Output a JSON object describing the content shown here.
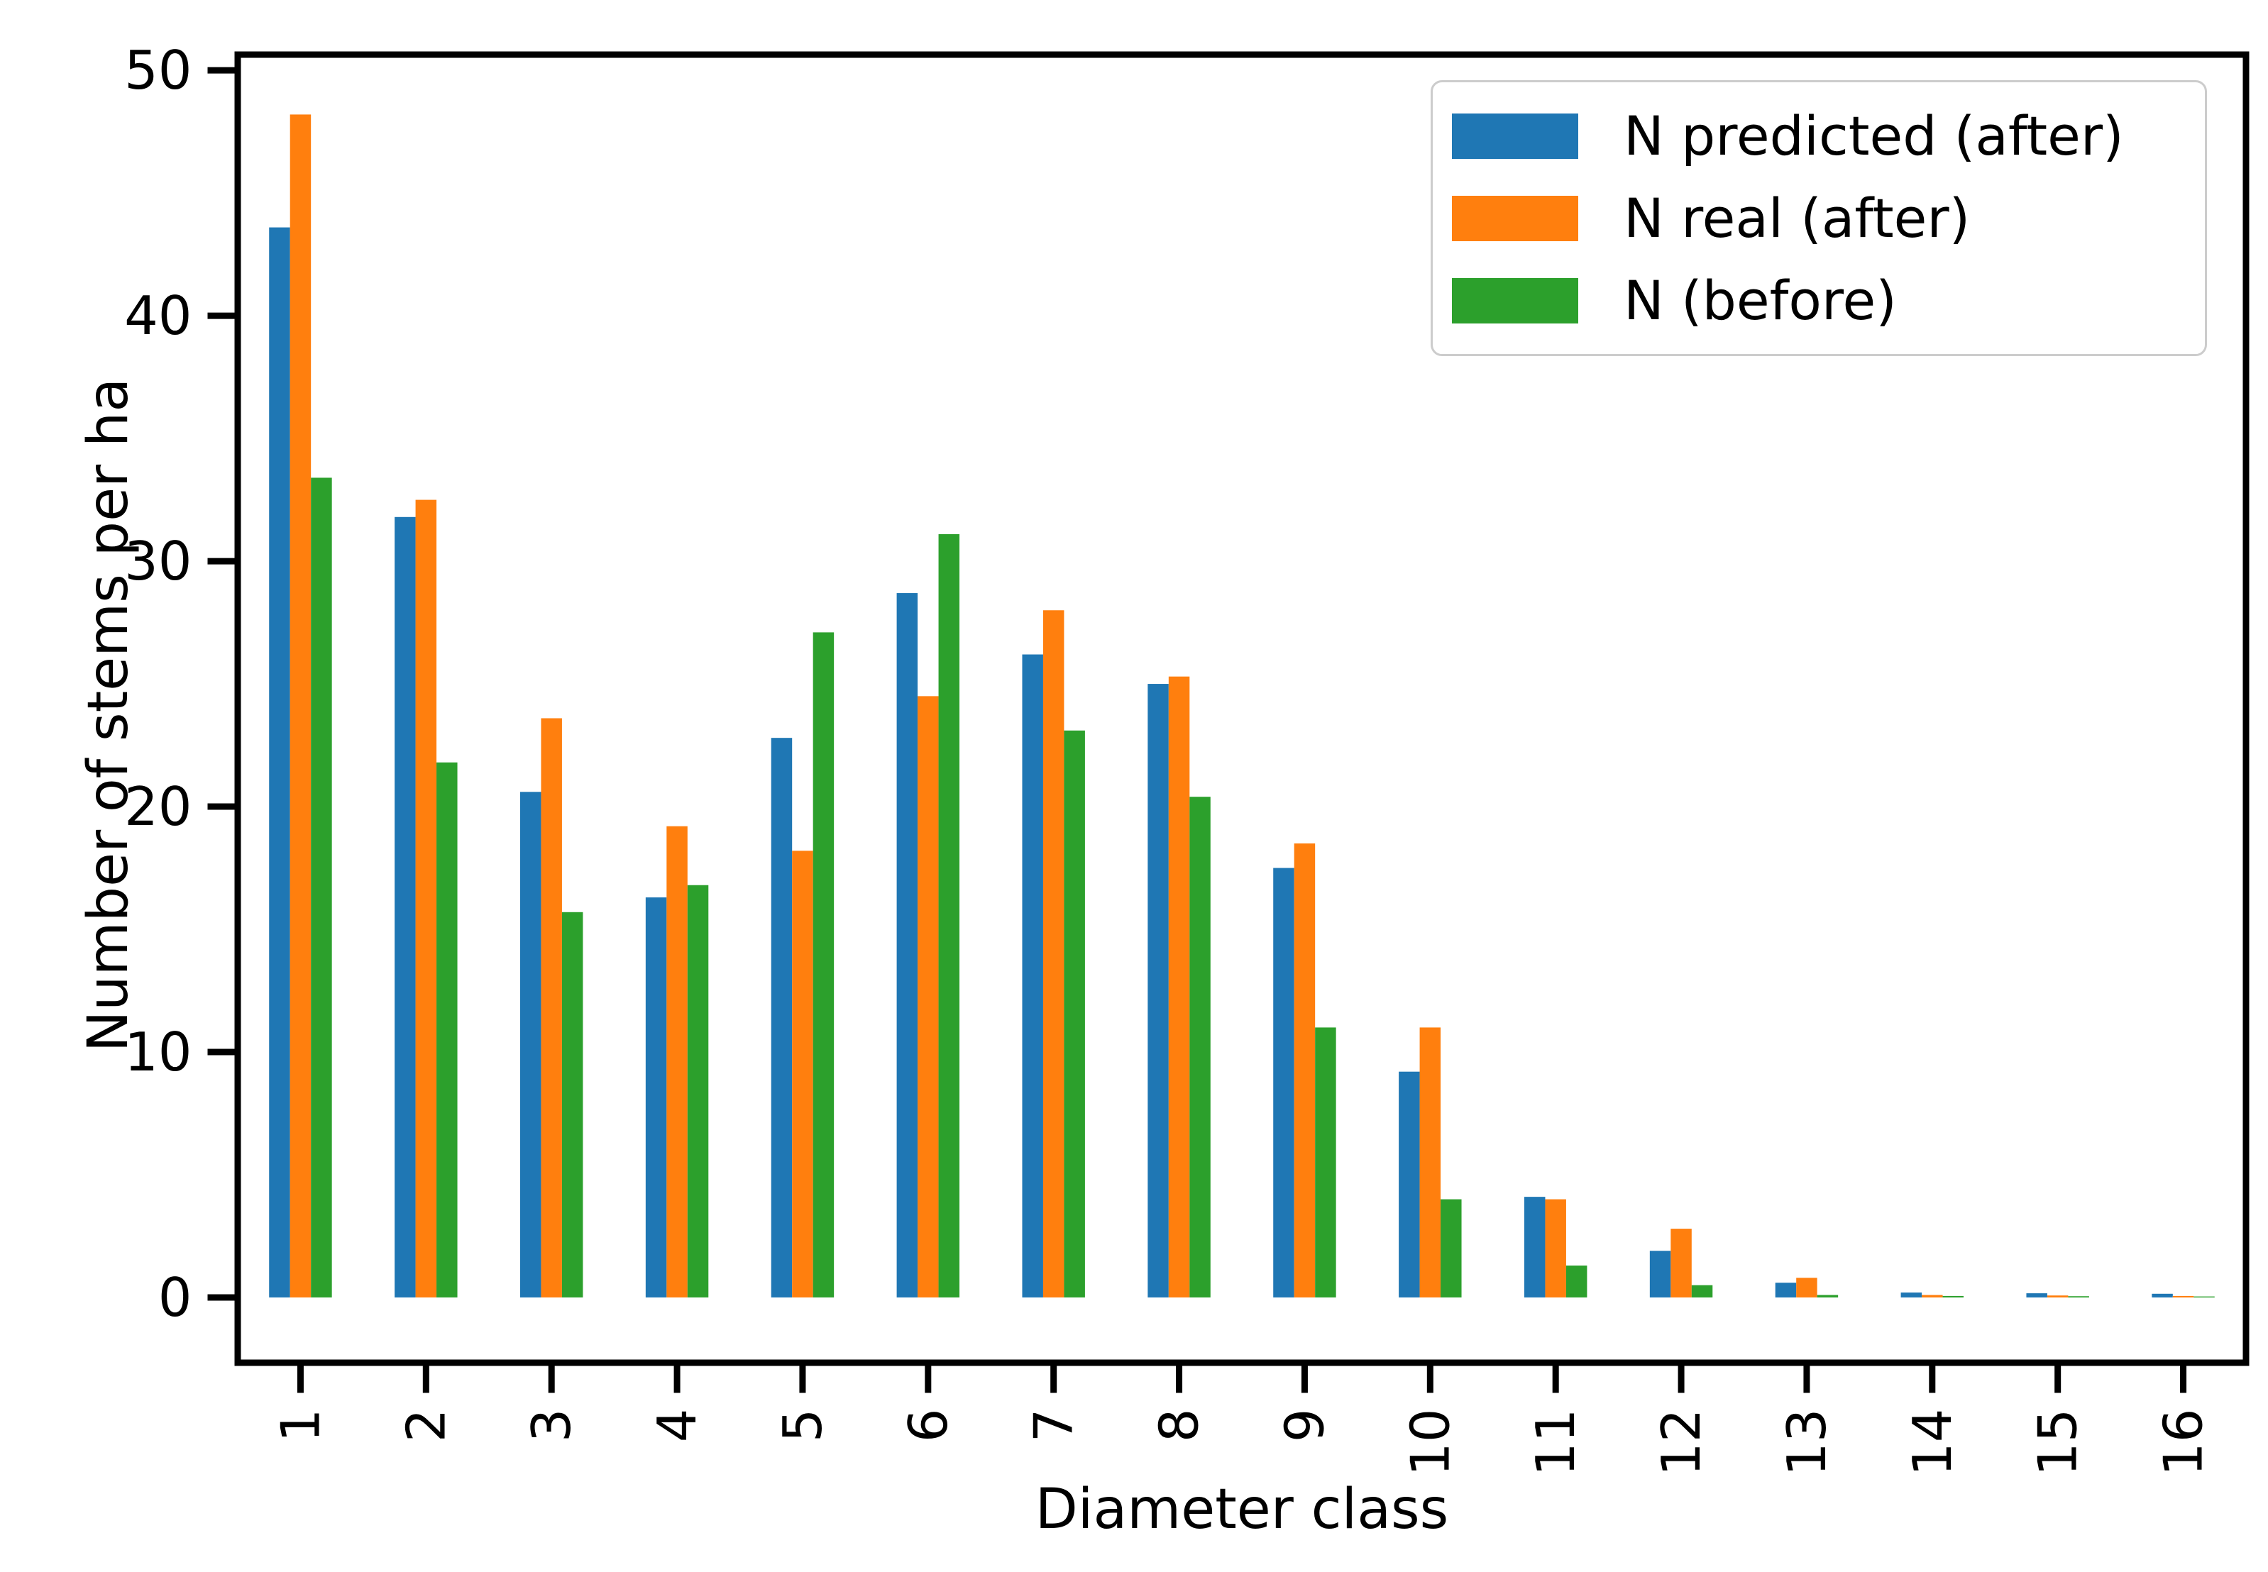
{
  "chart_data": {
    "type": "bar",
    "title": "",
    "xlabel": "Diameter class",
    "ylabel": "Number of stems per ha",
    "categories": [
      "1",
      "2",
      "3",
      "4",
      "5",
      "6",
      "7",
      "8",
      "9",
      "10",
      "11",
      "12",
      "13",
      "14",
      "15",
      "16"
    ],
    "series": [
      {
        "name": "N predicted (after)",
        "color": "#1f77b4",
        "values": [
          43.6,
          31.8,
          20.6,
          16.3,
          22.8,
          28.7,
          26.2,
          25.0,
          17.5,
          9.2,
          4.1,
          1.9,
          0.6,
          0.2,
          0.17,
          0.15
        ]
      },
      {
        "name": "N real (after)",
        "color": "#ff7f0e",
        "values": [
          48.2,
          32.5,
          23.6,
          19.2,
          18.2,
          24.5,
          28.0,
          25.3,
          18.5,
          11.0,
          4.0,
          2.8,
          0.8,
          0.1,
          0.08,
          0.06
        ]
      },
      {
        "name": "N (before)",
        "color": "#2ca02c",
        "values": [
          33.4,
          21.8,
          15.7,
          16.8,
          27.1,
          31.1,
          23.1,
          20.4,
          11.0,
          4.0,
          1.3,
          0.5,
          0.1,
          0.06,
          0.05,
          0.04
        ]
      }
    ],
    "y_ticks": [
      0,
      10,
      20,
      30,
      40,
      50
    ],
    "ylim": [
      -2.66,
      50.64
    ],
    "grid": false,
    "legend_position": "upper right",
    "x_tick_rotation": 90,
    "axis_color": "#000000",
    "background_color": "#ffffff",
    "legend_border_color": "#cccccc"
  }
}
